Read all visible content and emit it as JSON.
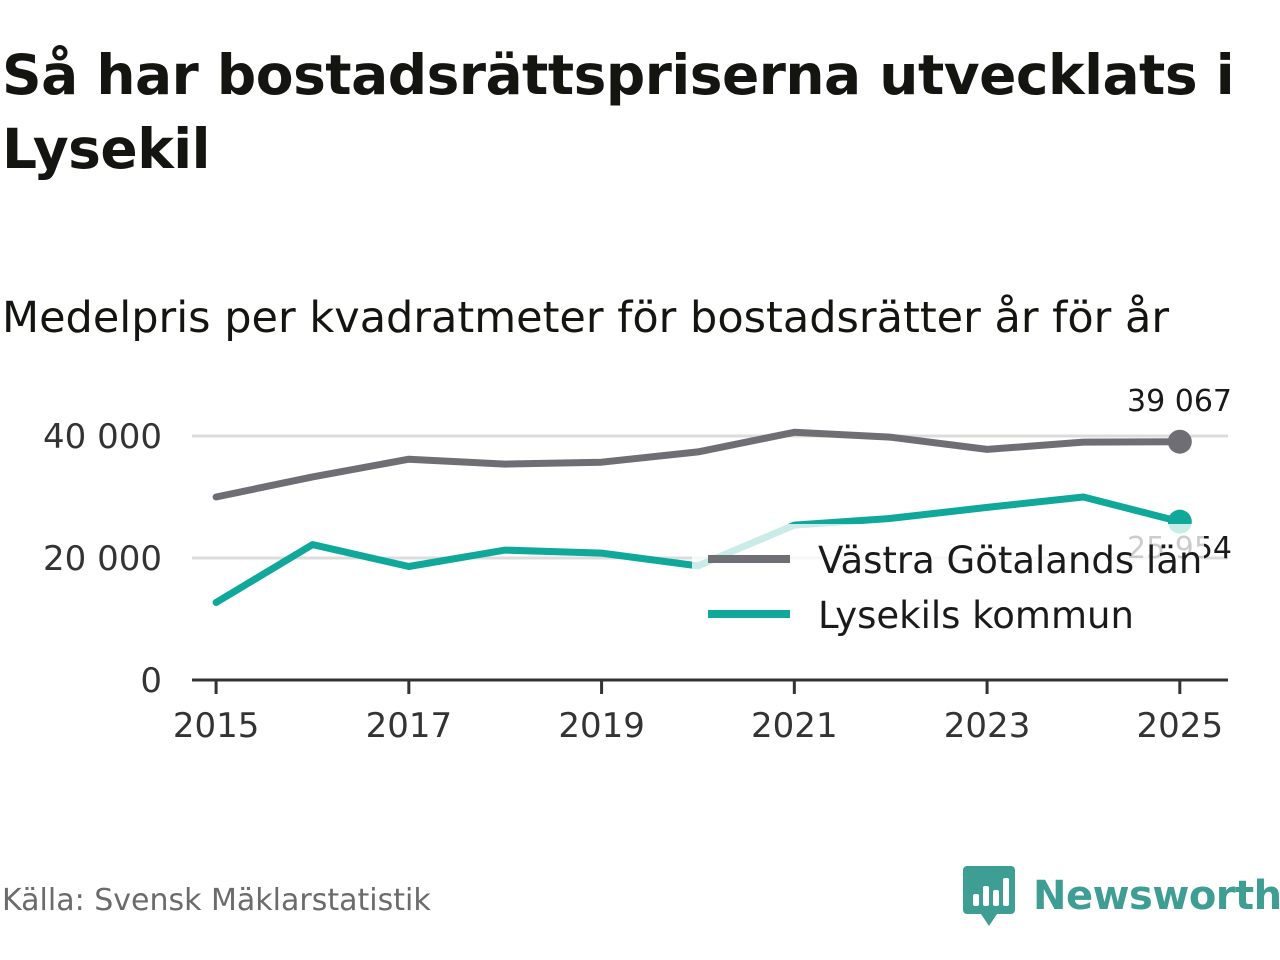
{
  "title": "Så har bostadsrättspriserna utvecklats i Lysekil",
  "subtitle": "Medelpris per kvadratmeter för bostadsrätter år för år",
  "source": "Källa: Svensk Mäklarstatistik",
  "brand": {
    "name": "Newsworthy",
    "icon": "bar-chart-icon",
    "color": "#3f9e93"
  },
  "chart_data": {
    "type": "line",
    "title": "Så har bostadsrättspriserna utvecklats i Lysekil",
    "subtitle": "Medelpris per kvadratmeter för bostadsrätter år för år",
    "xlabel": "",
    "ylabel": "",
    "x": [
      2015,
      2016,
      2017,
      2018,
      2019,
      2020,
      2021,
      2022,
      2023,
      2024,
      2025
    ],
    "xlim": [
      2014.75,
      2025.5
    ],
    "ylim": [
      0,
      40000
    ],
    "x_ticks": [
      2015,
      2017,
      2019,
      2021,
      2023,
      2025
    ],
    "x_tick_labels": [
      "2015",
      "2017",
      "2019",
      "2021",
      "2023",
      "2025"
    ],
    "y_ticks": [
      0,
      20000,
      40000
    ],
    "y_tick_labels": [
      "0",
      "20 000",
      "40 000"
    ],
    "grid": true,
    "legend_position": "bottom-right",
    "series": [
      {
        "name": "Västra Götalands län",
        "color": "#6f6e75",
        "values": [
          30000,
          33300,
          36200,
          35400,
          35700,
          37400,
          40600,
          39800,
          37800,
          39000,
          39067
        ],
        "end_label": "39 067"
      },
      {
        "name": "Lysekils kommun",
        "color": "#0fa89a",
        "values": [
          12700,
          22200,
          18600,
          21300,
          20800,
          18700,
          25400,
          26500,
          28300,
          30000,
          25954
        ],
        "end_label": "25 954"
      }
    ]
  }
}
